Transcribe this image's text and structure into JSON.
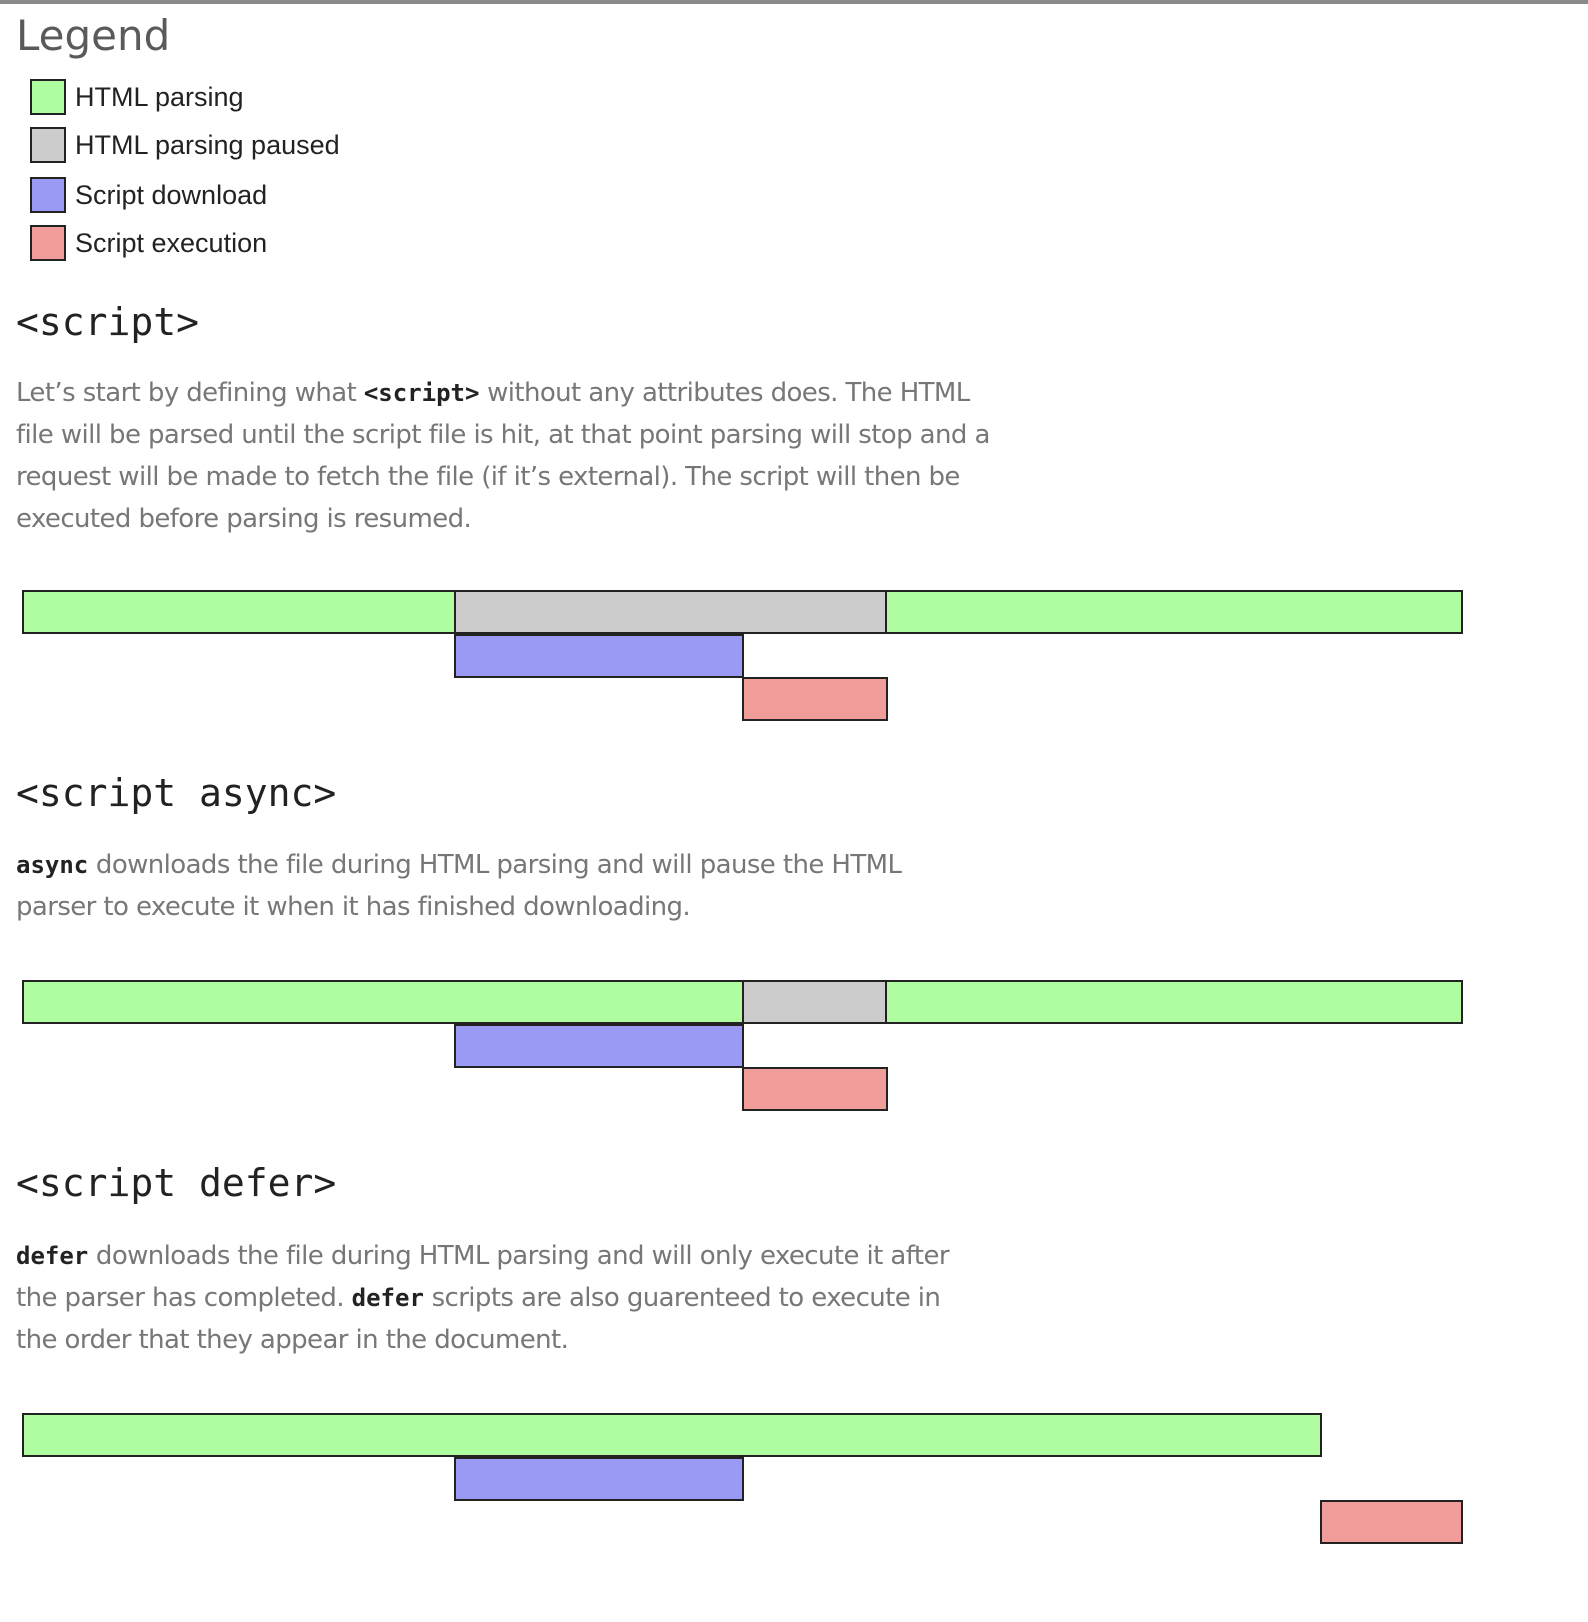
{
  "colors": {
    "parsing": "#b0fca0",
    "paused": "#cccccc",
    "download": "#9a9af5",
    "execution": "#f09c98"
  },
  "legend": {
    "title": "Legend",
    "items": [
      {
        "label": "HTML parsing",
        "color": "parsing"
      },
      {
        "label": "HTML parsing paused",
        "color": "paused"
      },
      {
        "label": "Script download",
        "color": "download"
      },
      {
        "label": "Script execution",
        "color": "execution"
      }
    ]
  },
  "sections": [
    {
      "title": "<script>",
      "desc": [
        {
          "t": "Let’s start by defining what "
        },
        {
          "t": "<script>",
          "code": true
        },
        {
          "t": " without any attributes does. The HTML"
        },
        {
          "br": true
        },
        {
          "t": "file will be parsed until the script file is hit, at that point parsing will stop and a"
        },
        {
          "br": true
        },
        {
          "t": "request will be made to fetch the file (if it’s external). The script will then be"
        },
        {
          "br": true
        },
        {
          "t": "executed before parsing is resumed."
        }
      ],
      "timeline": {
        "scale_max": 100,
        "segments": [
          {
            "kind": "parsing",
            "row": 0,
            "start": 0,
            "end": 30
          },
          {
            "kind": "paused",
            "row": 0,
            "start": 30,
            "end": 60
          },
          {
            "kind": "parsing",
            "row": 0,
            "start": 60,
            "end": 100
          },
          {
            "kind": "download",
            "row": 1,
            "start": 30,
            "end": 50
          },
          {
            "kind": "execution",
            "row": 2,
            "start": 50,
            "end": 60
          }
        ]
      }
    },
    {
      "title": "<script async>",
      "desc": [
        {
          "t": "async",
          "code": true
        },
        {
          "t": " downloads the file during HTML parsing and will pause the HTML"
        },
        {
          "br": true
        },
        {
          "t": "parser to execute it when it has finished downloading."
        }
      ],
      "timeline": {
        "scale_max": 100,
        "segments": [
          {
            "kind": "parsing",
            "row": 0,
            "start": 0,
            "end": 50
          },
          {
            "kind": "paused",
            "row": 0,
            "start": 50,
            "end": 60
          },
          {
            "kind": "parsing",
            "row": 0,
            "start": 60,
            "end": 100
          },
          {
            "kind": "download",
            "row": 1,
            "start": 30,
            "end": 50
          },
          {
            "kind": "execution",
            "row": 2,
            "start": 50,
            "end": 60
          }
        ]
      }
    },
    {
      "title": "<script defer>",
      "desc": [
        {
          "t": "defer",
          "code": true
        },
        {
          "t": " downloads the file during HTML parsing and will only execute it after"
        },
        {
          "br": true
        },
        {
          "t": "the parser has completed. "
        },
        {
          "t": "defer",
          "code": true
        },
        {
          "t": " scripts are also guarenteed to execute in"
        },
        {
          "br": true
        },
        {
          "t": "the order that they appear in the document."
        }
      ],
      "timeline": {
        "scale_max": 100,
        "segments": [
          {
            "kind": "parsing",
            "row": 0,
            "start": 0,
            "end": 90.2
          },
          {
            "kind": "download",
            "row": 1,
            "start": 30,
            "end": 50
          },
          {
            "kind": "execution",
            "row": 2,
            "start": 90.2,
            "end": 100
          }
        ]
      }
    }
  ]
}
